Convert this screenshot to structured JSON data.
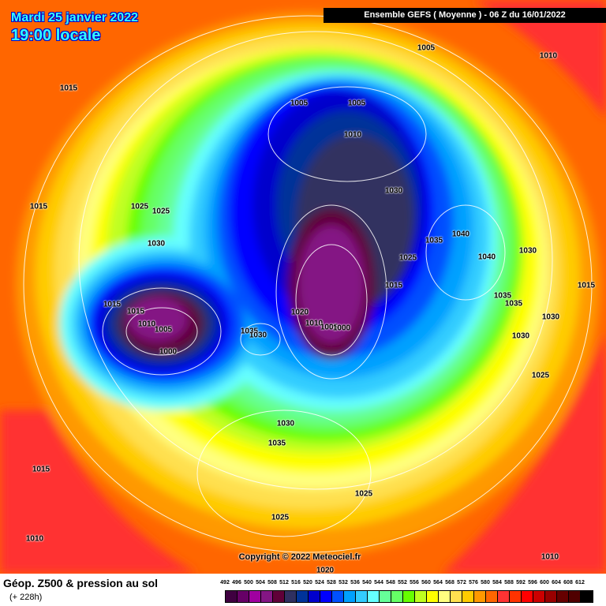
{
  "header": {
    "date": "Mardi 25 janvier 2022",
    "local_time": "19:00 locale",
    "run_info": "Ensemble GEFS  ( Moyenne )  -  06 Z du 16/01/2022"
  },
  "copyright": "Copyright © 2022 Meteociel.fr",
  "footer": {
    "title": "Géop. Z500 & pression au sol",
    "forecast_hour": "(+ 228h)"
  },
  "legend": {
    "values": [
      "492",
      "496",
      "500",
      "504",
      "508",
      "512",
      "516",
      "520",
      "524",
      "528",
      "532",
      "536",
      "540",
      "544",
      "548",
      "552",
      "556",
      "560",
      "564",
      "568",
      "572",
      "576",
      "580",
      "584",
      "588",
      "592",
      "596",
      "600",
      "604",
      "608",
      "612"
    ],
    "colors": [
      "#3f0040",
      "#660066",
      "#a000a0",
      "#841684",
      "#600038",
      "#303060",
      "#003399",
      "#0000cc",
      "#0000ff",
      "#0050ff",
      "#00a0ff",
      "#33ccff",
      "#66ffff",
      "#66ff99",
      "#66ff66",
      "#66ff00",
      "#c0ff20",
      "#ffff00",
      "#ffff80",
      "#ffe050",
      "#ffcc00",
      "#ff9900",
      "#ff6600",
      "#ff3333",
      "#ff3300",
      "#ff0000",
      "#cc0000",
      "#990000",
      "#660000",
      "#500000",
      "#000000"
    ]
  },
  "pressure_labels": [
    "1005",
    "1010",
    "1015",
    "1005",
    "1005",
    "1010",
    "1030",
    "1015",
    "1025",
    "1025",
    "1040",
    "1035",
    "1030",
    "1040",
    "1030",
    "1025",
    "1015",
    "1015",
    "1035",
    "1035",
    "1015",
    "1015",
    "1020",
    "1010",
    "1010",
    "1005",
    "1005",
    "1000",
    "1035",
    "1030",
    "1030",
    "1030",
    "1000",
    "1025",
    "1030",
    "1035",
    "1015",
    "1025",
    "1025",
    "1010",
    "1010",
    "1020"
  ]
}
